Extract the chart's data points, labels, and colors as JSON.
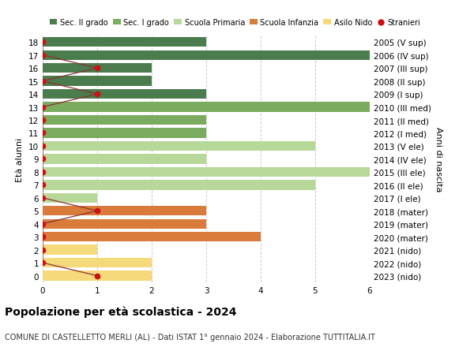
{
  "ages": [
    18,
    17,
    16,
    15,
    14,
    13,
    12,
    11,
    10,
    9,
    8,
    7,
    6,
    5,
    4,
    3,
    2,
    1,
    0
  ],
  "right_labels": [
    "2005 (V sup)",
    "2006 (IV sup)",
    "2007 (III sup)",
    "2008 (II sup)",
    "2009 (I sup)",
    "2010 (III med)",
    "2011 (II med)",
    "2012 (I med)",
    "2013 (V ele)",
    "2014 (IV ele)",
    "2015 (III ele)",
    "2016 (II ele)",
    "2017 (I ele)",
    "2018 (mater)",
    "2019 (mater)",
    "2020 (mater)",
    "2021 (nido)",
    "2022 (nido)",
    "2023 (nido)"
  ],
  "bar_values": [
    3,
    6,
    2,
    2,
    3,
    6,
    3,
    3,
    5,
    3,
    6,
    5,
    1,
    3,
    3,
    4,
    1,
    2,
    2
  ],
  "bar_colors": [
    "#4a7c4e",
    "#4a7c4e",
    "#4a7c4e",
    "#4a7c4e",
    "#4a7c4e",
    "#7aab5e",
    "#7aab5e",
    "#7aab5e",
    "#b8d89a",
    "#b8d89a",
    "#b8d89a",
    "#b8d89a",
    "#b8d89a",
    "#d97b3a",
    "#d97b3a",
    "#d97b3a",
    "#f5d97a",
    "#f5d97a",
    "#f5d97a"
  ],
  "stranieri_values": [
    0,
    0,
    1,
    0,
    1,
    0,
    0,
    0,
    0,
    0,
    0,
    0,
    0,
    1,
    0,
    0,
    0,
    0,
    1
  ],
  "stranieri_color": "#cc1111",
  "line_color": "#8b3030",
  "xlim": [
    0,
    6
  ],
  "ylim": [
    -0.5,
    18.5
  ],
  "ylabel": "Età alunni",
  "right_ylabel": "Anni di nascita",
  "title": "Popolazione per età scolastica - 2024",
  "subtitle": "COMUNE DI CASTELLETTO MERLI (AL) - Dati ISTAT 1° gennaio 2024 - Elaborazione TUTTITALIA.IT",
  "legend_labels": [
    "Sec. II grado",
    "Sec. I grado",
    "Scuola Primaria",
    "Scuola Infanzia",
    "Asilo Nido",
    "Stranieri"
  ],
  "legend_colors": [
    "#4a7c4e",
    "#7aab5e",
    "#b8d89a",
    "#d97b3a",
    "#f5d97a",
    "#cc1111"
  ],
  "grid_color": "#cccccc",
  "bg_color": "#ffffff",
  "bar_height": 0.75,
  "tick_fontsize": 7.5,
  "label_fontsize": 8,
  "title_fontsize": 10,
  "subtitle_fontsize": 7
}
